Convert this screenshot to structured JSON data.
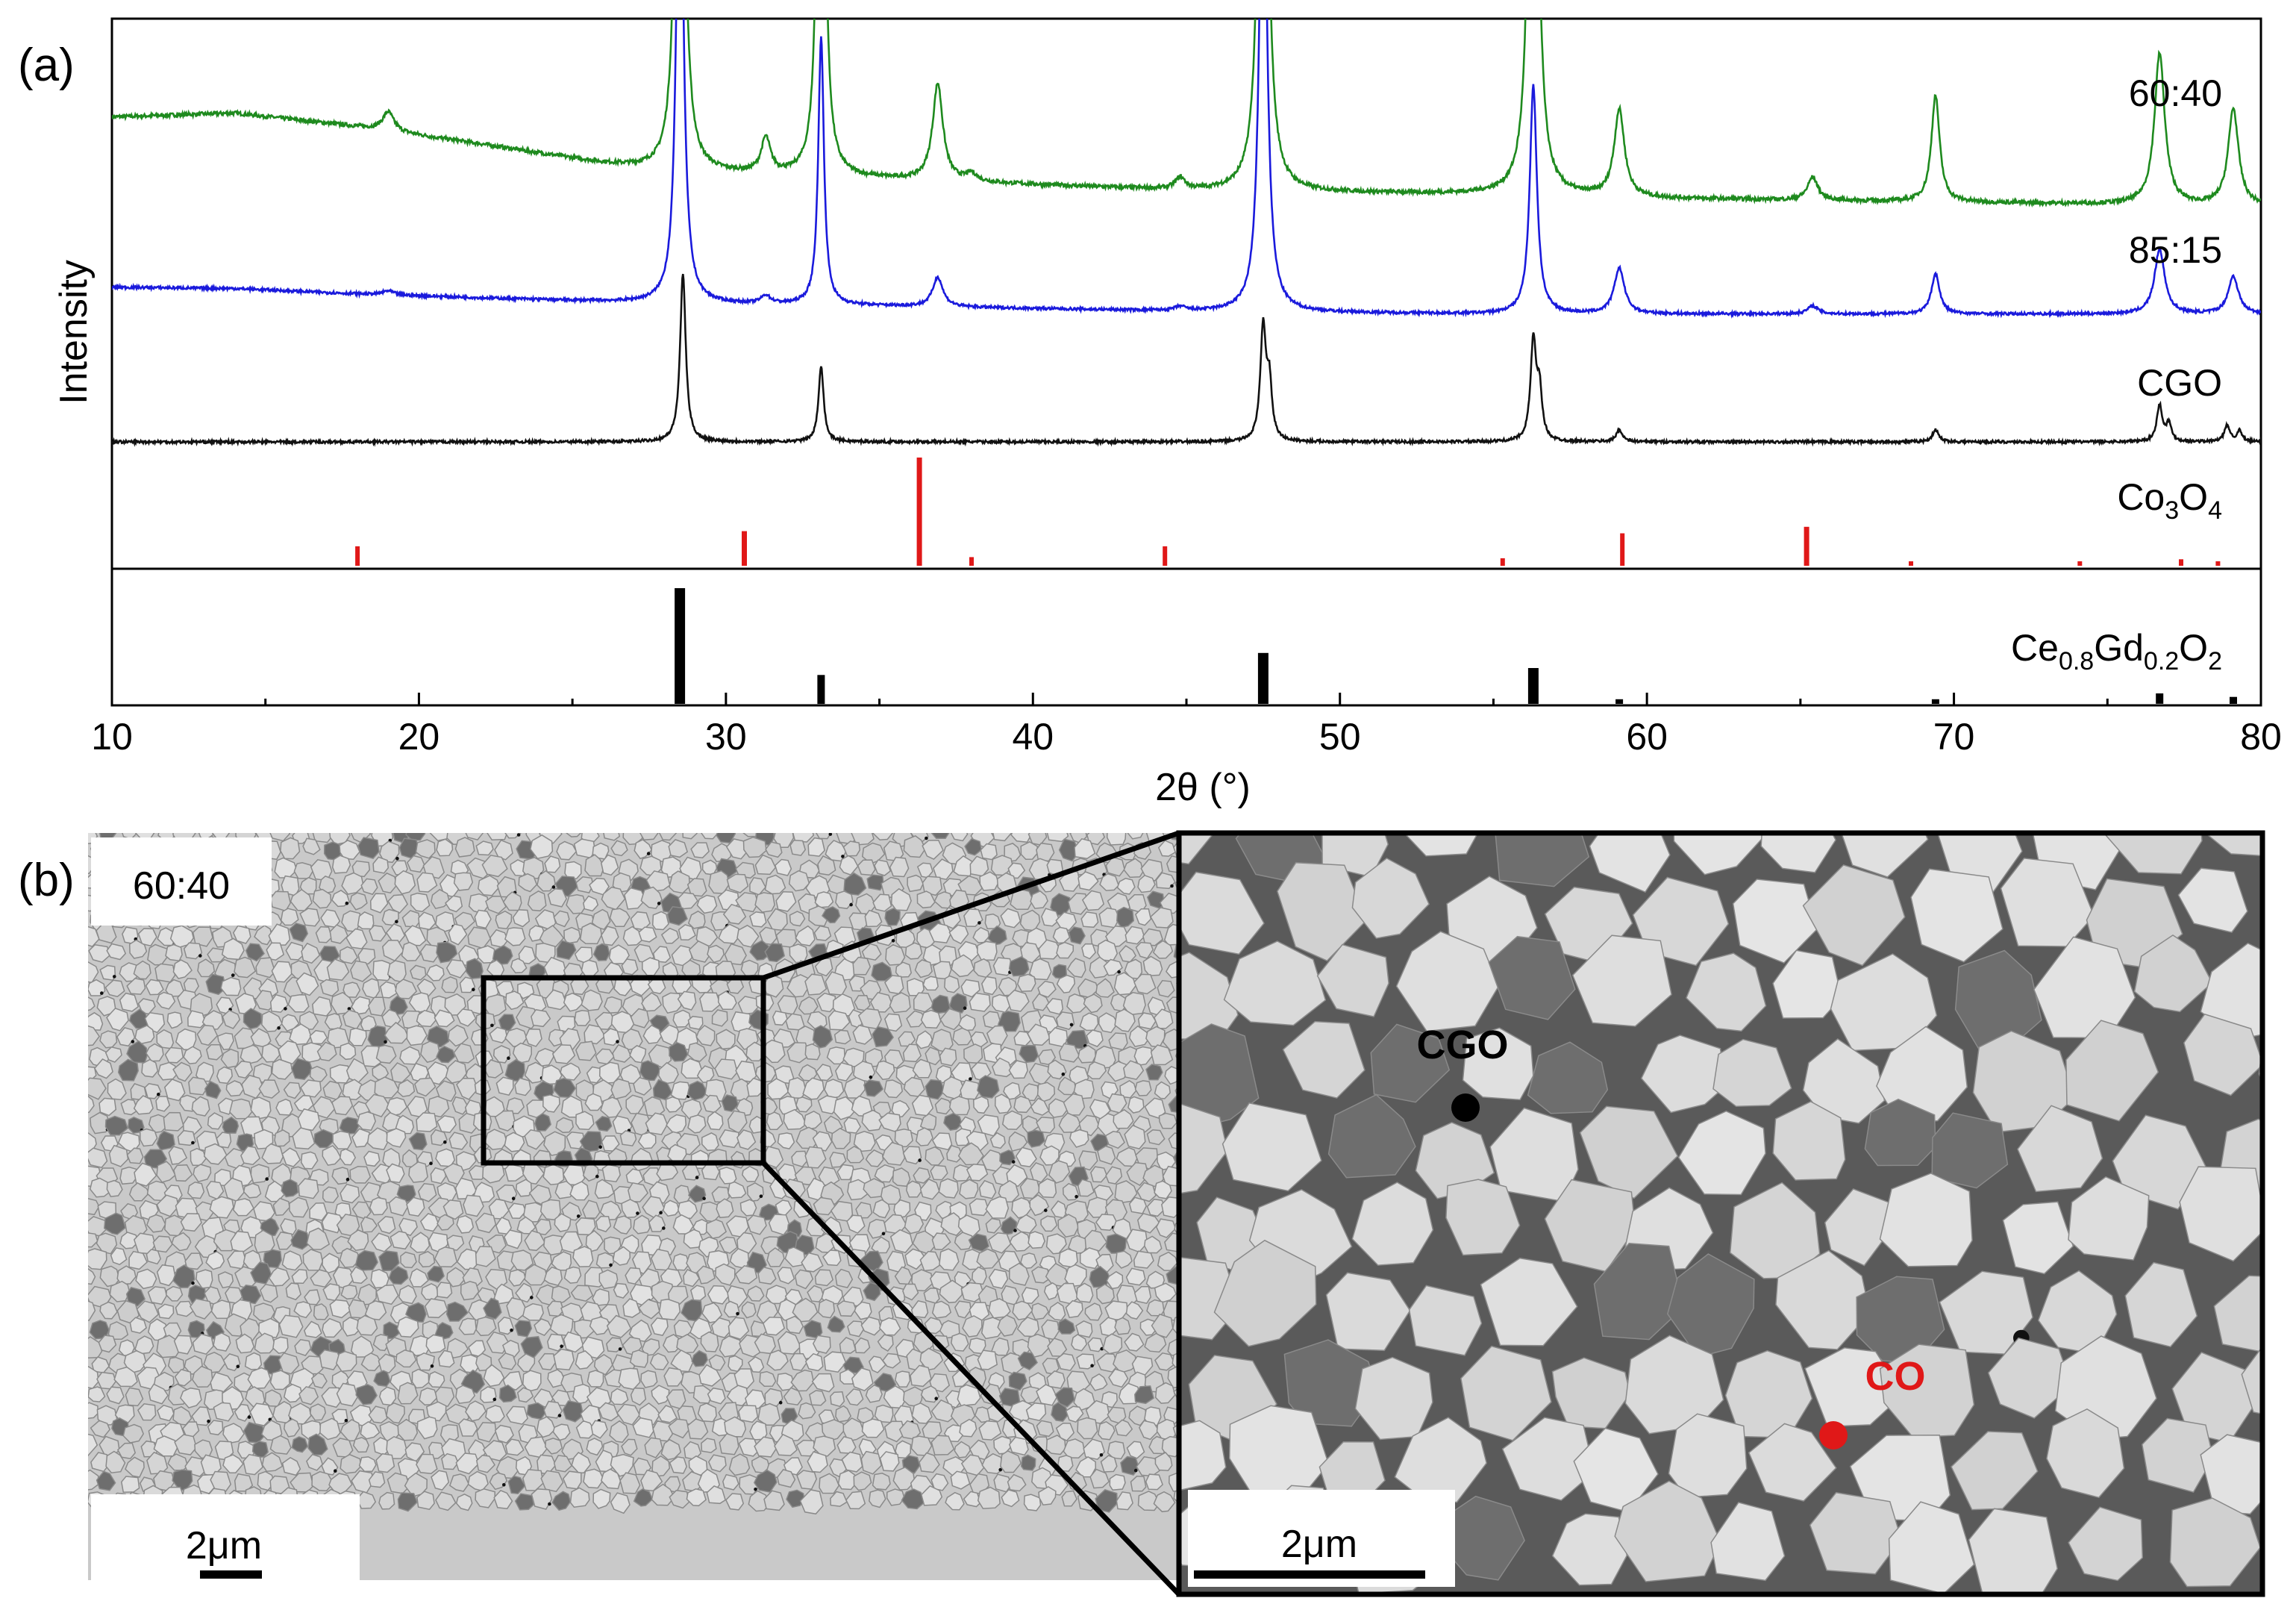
{
  "panel_labels": {
    "a": "(a)",
    "b": "(b)"
  },
  "chart_data": {
    "type": "line",
    "title": "",
    "xlabel": "2θ (°)",
    "ylabel": "Intensity",
    "xlim": [
      10,
      80
    ],
    "xticks": [
      "10",
      "20",
      "30",
      "40",
      "50",
      "60",
      "70",
      "80"
    ],
    "series": [
      {
        "name": "60:40",
        "color": "#1e8a1e",
        "baseline": [
          [
            10,
            0.62
          ],
          [
            14,
            0.64
          ],
          [
            18,
            0.57
          ],
          [
            22,
            0.48
          ],
          [
            26,
            0.38
          ],
          [
            28,
            0.34
          ],
          [
            35,
            0.3
          ],
          [
            45,
            0.24
          ],
          [
            55,
            0.22
          ],
          [
            60,
            0.2
          ],
          [
            70,
            0.18
          ],
          [
            80,
            0.16
          ]
        ],
        "peaks": [
          {
            "x": 19.0,
            "h": 0.1,
            "w": 0.22
          },
          {
            "x": 28.5,
            "h": 4.0,
            "w": 0.13
          },
          {
            "x": 31.3,
            "h": 0.18,
            "w": 0.18
          },
          {
            "x": 33.1,
            "h": 4.0,
            "w": 0.11
          },
          {
            "x": 36.9,
            "h": 0.5,
            "w": 0.2
          },
          {
            "x": 38.0,
            "h": 0.04,
            "w": 0.2
          },
          {
            "x": 44.8,
            "h": 0.06,
            "w": 0.2
          },
          {
            "x": 47.5,
            "h": 4.0,
            "w": 0.14
          },
          {
            "x": 56.3,
            "h": 4.0,
            "w": 0.14
          },
          {
            "x": 59.1,
            "h": 0.45,
            "w": 0.2
          },
          {
            "x": 65.4,
            "h": 0.12,
            "w": 0.2
          },
          {
            "x": 69.4,
            "h": 0.55,
            "w": 0.16
          },
          {
            "x": 76.7,
            "h": 0.78,
            "w": 0.2
          },
          {
            "x": 79.1,
            "h": 0.5,
            "w": 0.2
          }
        ]
      },
      {
        "name": "85:15",
        "color": "#1a1adc",
        "baseline": [
          [
            10,
            0.14
          ],
          [
            14,
            0.13
          ],
          [
            18,
            0.09
          ],
          [
            22,
            0.06
          ],
          [
            28,
            0.02
          ],
          [
            35,
            0.0
          ],
          [
            45,
            -0.04
          ],
          [
            55,
            -0.06
          ],
          [
            80,
            -0.06
          ]
        ],
        "peaks": [
          {
            "x": 19.0,
            "h": 0.03,
            "w": 0.22
          },
          {
            "x": 28.5,
            "h": 4.0,
            "w": 0.13
          },
          {
            "x": 31.3,
            "h": 0.06,
            "w": 0.18
          },
          {
            "x": 33.1,
            "h": 2.0,
            "w": 0.11
          },
          {
            "x": 36.9,
            "h": 0.22,
            "w": 0.2
          },
          {
            "x": 44.8,
            "h": 0.03,
            "w": 0.2
          },
          {
            "x": 47.5,
            "h": 4.0,
            "w": 0.14
          },
          {
            "x": 56.3,
            "h": 1.7,
            "w": 0.14
          },
          {
            "x": 59.1,
            "h": 0.34,
            "w": 0.2
          },
          {
            "x": 65.4,
            "h": 0.06,
            "w": 0.2
          },
          {
            "x": 69.4,
            "h": 0.3,
            "w": 0.16
          },
          {
            "x": 76.7,
            "h": 0.48,
            "w": 0.2
          },
          {
            "x": 79.1,
            "h": 0.28,
            "w": 0.2
          }
        ]
      },
      {
        "name": "CGO",
        "color": "#111111",
        "baseline": [
          [
            10,
            0.0
          ],
          [
            80,
            0.0
          ]
        ],
        "peaks": [
          {
            "x": 28.6,
            "h": 1.25,
            "w": 0.11
          },
          {
            "x": 33.1,
            "h": 0.57,
            "w": 0.1
          },
          {
            "x": 47.5,
            "h": 0.84,
            "w": 0.11
          },
          {
            "x": 47.7,
            "h": 0.4,
            "w": 0.1
          },
          {
            "x": 56.3,
            "h": 0.74,
            "w": 0.11
          },
          {
            "x": 56.5,
            "h": 0.35,
            "w": 0.1
          },
          {
            "x": 59.1,
            "h": 0.09,
            "w": 0.12
          },
          {
            "x": 69.4,
            "h": 0.09,
            "w": 0.12
          },
          {
            "x": 76.7,
            "h": 0.27,
            "w": 0.11
          },
          {
            "x": 77.0,
            "h": 0.13,
            "w": 0.1
          },
          {
            "x": 78.9,
            "h": 0.12,
            "w": 0.11
          },
          {
            "x": 79.3,
            "h": 0.08,
            "w": 0.1
          }
        ]
      }
    ],
    "reference_patterns": [
      {
        "name_main": "Co",
        "name_sub1": "3",
        "name_mid": "O",
        "name_sub2": "4",
        "color": "#e01818",
        "sticks": [
          [
            18.0,
            0.18
          ],
          [
            30.6,
            0.32
          ],
          [
            36.3,
            1.0
          ],
          [
            38.0,
            0.08
          ],
          [
            44.3,
            0.18
          ],
          [
            55.3,
            0.07
          ],
          [
            59.2,
            0.3
          ],
          [
            65.2,
            0.36
          ],
          [
            68.6,
            0.02
          ],
          [
            74.1,
            0.02
          ],
          [
            77.4,
            0.06
          ],
          [
            78.6,
            0.03
          ]
        ]
      },
      {
        "name_main": "Ce",
        "name_sub1": "0.8",
        "name_mid": "Gd",
        "name_sub2": "0.2",
        "name_mid2": "O",
        "name_sub3": "2",
        "color": "#000000",
        "sticks": [
          [
            28.5,
            1.0
          ],
          [
            33.1,
            0.25
          ],
          [
            47.5,
            0.44
          ],
          [
            56.3,
            0.31
          ],
          [
            59.1,
            0.04
          ],
          [
            69.4,
            0.04
          ],
          [
            76.7,
            0.09
          ],
          [
            79.1,
            0.06
          ]
        ]
      }
    ]
  },
  "micrographs": {
    "left": {
      "label": "60:40",
      "scale_bar": "2μm"
    },
    "right": {
      "scale_bar": "2μm",
      "markers": [
        {
          "text": "CGO",
          "color": "#000000"
        },
        {
          "text": "CO",
          "color": "#e01818"
        }
      ]
    }
  }
}
